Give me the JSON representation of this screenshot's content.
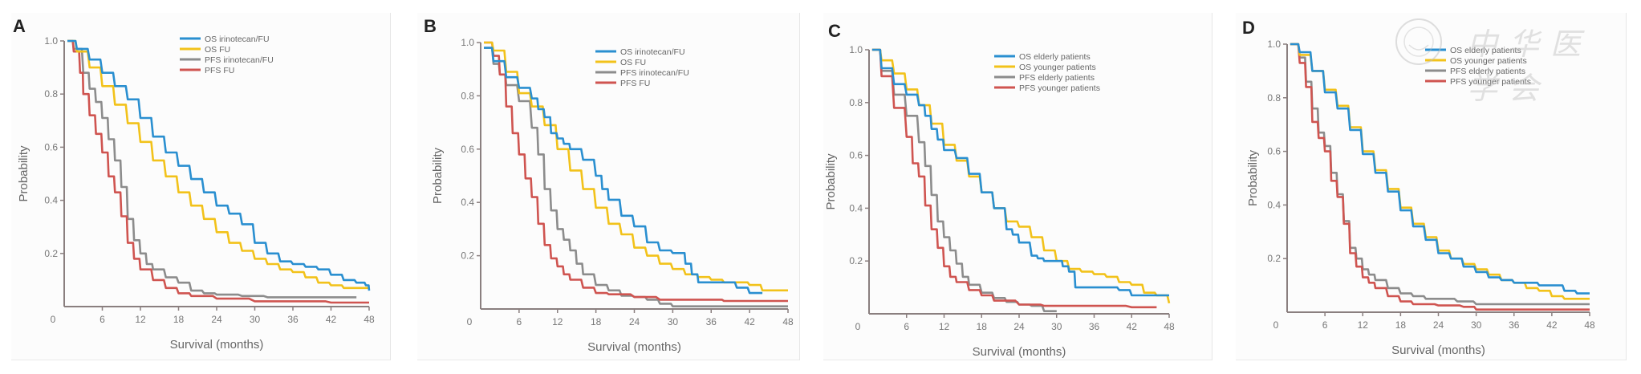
{
  "watermark": {
    "text": "中华医学会"
  },
  "chart_data": [
    {
      "panel": "A",
      "type": "line",
      "title": "",
      "xlabel": "Survival (months)",
      "ylabel": "Probability",
      "xlim": [
        0,
        48
      ],
      "ylim": [
        0,
        1.0
      ],
      "xticks": [
        "0",
        "6",
        "12",
        "18",
        "24",
        "30",
        "36",
        "42",
        "48"
      ],
      "yticks": [
        "0.2",
        "0.4",
        "0.6",
        "0.8",
        "1.0"
      ],
      "grid": false,
      "legend_position": "top-right",
      "series": [
        {
          "name": "OS irinotecan/FU",
          "color": "#2a8fd0",
          "x": [
            0.5,
            2,
            4,
            6,
            8,
            10,
            12,
            14,
            16,
            18,
            20,
            22,
            24,
            26,
            28,
            30,
            32,
            34,
            36,
            38,
            40,
            42,
            44,
            46,
            47.5,
            48
          ],
          "y": [
            1.0,
            0.97,
            0.93,
            0.88,
            0.83,
            0.78,
            0.71,
            0.64,
            0.58,
            0.53,
            0.48,
            0.43,
            0.38,
            0.35,
            0.31,
            0.24,
            0.2,
            0.17,
            0.16,
            0.15,
            0.14,
            0.12,
            0.1,
            0.09,
            0.08,
            0.06
          ]
        },
        {
          "name": "OS FU",
          "color": "#f2c21a",
          "x": [
            0.5,
            2,
            4,
            6,
            8,
            10,
            12,
            14,
            16,
            18,
            20,
            22,
            24,
            26,
            28,
            30,
            32,
            34,
            36,
            38,
            40,
            42,
            44,
            46,
            48
          ],
          "y": [
            1.0,
            0.96,
            0.9,
            0.83,
            0.76,
            0.69,
            0.62,
            0.55,
            0.49,
            0.43,
            0.38,
            0.33,
            0.28,
            0.24,
            0.21,
            0.18,
            0.16,
            0.14,
            0.13,
            0.11,
            0.09,
            0.08,
            0.07,
            0.07,
            0.07
          ]
        },
        {
          "name": "PFS irinotecan/FU",
          "color": "#8c8c8c",
          "x": [
            0.5,
            1.5,
            3,
            4,
            5,
            6,
            7,
            8,
            9,
            10,
            11,
            12,
            13,
            14,
            16,
            18,
            20,
            22,
            24,
            28,
            32,
            36,
            42,
            46
          ],
          "y": [
            1.0,
            0.97,
            0.88,
            0.82,
            0.77,
            0.71,
            0.63,
            0.55,
            0.45,
            0.33,
            0.25,
            0.2,
            0.16,
            0.14,
            0.11,
            0.09,
            0.06,
            0.05,
            0.045,
            0.04,
            0.035,
            0.035,
            0.035,
            0.035
          ]
        },
        {
          "name": "PFS FU",
          "color": "#cf5450",
          "x": [
            0.5,
            1.5,
            2.5,
            3,
            4,
            5,
            6,
            7,
            8,
            9,
            10,
            11,
            12,
            14,
            16,
            18,
            20,
            24,
            30,
            36,
            42,
            48
          ],
          "y": [
            1.0,
            0.96,
            0.88,
            0.8,
            0.72,
            0.65,
            0.58,
            0.49,
            0.43,
            0.34,
            0.24,
            0.18,
            0.14,
            0.1,
            0.07,
            0.05,
            0.04,
            0.03,
            0.02,
            0.02,
            0.015,
            0.015
          ]
        }
      ]
    },
    {
      "panel": "B",
      "type": "line",
      "title": "",
      "xlabel": "Survival (months)",
      "ylabel": "Probability",
      "xlim": [
        0,
        48
      ],
      "ylim": [
        0,
        1.0
      ],
      "xticks": [
        "0",
        "6",
        "12",
        "18",
        "24",
        "30",
        "36",
        "42",
        "48"
      ],
      "yticks": [
        "0.2",
        "0.4",
        "0.6",
        "0.8",
        "1.0"
      ],
      "grid": false,
      "legend_position": "top-right",
      "series": [
        {
          "name": "OS irinotecan/FU",
          "color": "#2a8fd0",
          "x": [
            0.5,
            2,
            4,
            6,
            8,
            9,
            10,
            11,
            12,
            13,
            14,
            16,
            18,
            19,
            20,
            22,
            24,
            26,
            28,
            30,
            31,
            32,
            33,
            34,
            36,
            38,
            40,
            42,
            44
          ],
          "y": [
            0.98,
            0.93,
            0.87,
            0.83,
            0.79,
            0.75,
            0.72,
            0.66,
            0.64,
            0.62,
            0.6,
            0.56,
            0.5,
            0.45,
            0.41,
            0.35,
            0.31,
            0.25,
            0.22,
            0.21,
            0.21,
            0.17,
            0.13,
            0.1,
            0.1,
            0.1,
            0.08,
            0.06,
            0.06
          ]
        },
        {
          "name": "OS FU",
          "color": "#f2c21a",
          "x": [
            0.5,
            2,
            4,
            6,
            8,
            10,
            12,
            14,
            16,
            18,
            20,
            22,
            24,
            26,
            28,
            30,
            32,
            34,
            36,
            38,
            40,
            42,
            44,
            46,
            48
          ],
          "y": [
            1.0,
            0.97,
            0.89,
            0.81,
            0.76,
            0.69,
            0.6,
            0.52,
            0.45,
            0.38,
            0.32,
            0.28,
            0.23,
            0.2,
            0.17,
            0.15,
            0.13,
            0.12,
            0.11,
            0.1,
            0.1,
            0.09,
            0.07,
            0.07,
            0.07
          ]
        },
        {
          "name": "PFS irinotecan/FU",
          "color": "#8c8c8c",
          "x": [
            0.5,
            2,
            3,
            4,
            6,
            8,
            9,
            10,
            11,
            12,
            13,
            14,
            15,
            16,
            18,
            20,
            22,
            24,
            26,
            28,
            30,
            36,
            42,
            48
          ],
          "y": [
            0.98,
            0.92,
            0.88,
            0.84,
            0.78,
            0.68,
            0.58,
            0.45,
            0.37,
            0.3,
            0.26,
            0.22,
            0.17,
            0.13,
            0.09,
            0.07,
            0.05,
            0.045,
            0.035,
            0.02,
            0.01,
            0.01,
            0.01,
            0.01
          ]
        },
        {
          "name": "PFS FU",
          "color": "#cf5450",
          "x": [
            0.5,
            2,
            3,
            4,
            5,
            6,
            7,
            8,
            9,
            10,
            11,
            12,
            13,
            14,
            16,
            18,
            20,
            24,
            28,
            32,
            36,
            38,
            42,
            48
          ],
          "y": [
            1.0,
            0.95,
            0.88,
            0.76,
            0.66,
            0.58,
            0.49,
            0.42,
            0.32,
            0.24,
            0.19,
            0.16,
            0.13,
            0.11,
            0.08,
            0.06,
            0.055,
            0.045,
            0.035,
            0.035,
            0.035,
            0.03,
            0.03,
            0.03
          ]
        }
      ]
    },
    {
      "panel": "C",
      "type": "line",
      "title": "",
      "xlabel": "Survival (months)",
      "ylabel": "Probability",
      "xlim": [
        0,
        48
      ],
      "ylim": [
        0,
        1.0
      ],
      "xticks": [
        "0",
        "6",
        "12",
        "18",
        "24",
        "30",
        "36",
        "42",
        "48"
      ],
      "yticks": [
        "0.2",
        "0.4",
        "0.6",
        "0.8",
        "1.0"
      ],
      "grid": false,
      "legend_position": "top-right",
      "series": [
        {
          "name": "OS elderly patients",
          "color": "#2a8fd0",
          "x": [
            0.5,
            2,
            4,
            6,
            8,
            9,
            10,
            11,
            12,
            14,
            16,
            18,
            20,
            22,
            23,
            24,
            26,
            27,
            28,
            30,
            31,
            32,
            33,
            34,
            36,
            38,
            40,
            42,
            44,
            46,
            48
          ],
          "y": [
            1.0,
            0.93,
            0.87,
            0.83,
            0.79,
            0.75,
            0.7,
            0.66,
            0.62,
            0.59,
            0.53,
            0.46,
            0.4,
            0.32,
            0.3,
            0.27,
            0.22,
            0.21,
            0.2,
            0.2,
            0.18,
            0.16,
            0.1,
            0.1,
            0.1,
            0.1,
            0.09,
            0.07,
            0.07,
            0.07,
            0.07
          ]
        },
        {
          "name": "OS younger patients",
          "color": "#f2c21a",
          "x": [
            0.5,
            2,
            4,
            6,
            8,
            10,
            12,
            14,
            16,
            18,
            20,
            22,
            24,
            26,
            28,
            30,
            32,
            34,
            36,
            38,
            40,
            42,
            44,
            46,
            48
          ],
          "y": [
            1.0,
            0.96,
            0.91,
            0.85,
            0.79,
            0.72,
            0.64,
            0.58,
            0.52,
            0.46,
            0.4,
            0.35,
            0.33,
            0.29,
            0.24,
            0.2,
            0.17,
            0.16,
            0.15,
            0.14,
            0.12,
            0.11,
            0.08,
            0.07,
            0.04
          ]
        },
        {
          "name": "PFS elderly patients",
          "color": "#8c8c8c",
          "x": [
            0.5,
            2,
            4,
            6,
            8,
            9,
            10,
            11,
            12,
            13,
            14,
            15,
            16,
            18,
            20,
            22,
            24,
            26,
            28,
            30
          ],
          "y": [
            1.0,
            0.92,
            0.83,
            0.75,
            0.65,
            0.56,
            0.45,
            0.35,
            0.29,
            0.24,
            0.19,
            0.14,
            0.11,
            0.08,
            0.06,
            0.045,
            0.035,
            0.03,
            0.01,
            0.01
          ]
        },
        {
          "name": "PFS younger patients",
          "color": "#cf5450",
          "x": [
            0.5,
            2,
            4,
            6,
            7,
            8,
            9,
            10,
            11,
            12,
            13,
            14,
            16,
            18,
            20,
            24,
            28,
            30,
            36,
            42,
            46
          ],
          "y": [
            1.0,
            0.9,
            0.78,
            0.67,
            0.57,
            0.52,
            0.41,
            0.32,
            0.25,
            0.18,
            0.14,
            0.12,
            0.09,
            0.07,
            0.05,
            0.035,
            0.03,
            0.03,
            0.03,
            0.025,
            0.025
          ]
        }
      ]
    },
    {
      "panel": "D",
      "type": "line",
      "title": "",
      "xlabel": "Survival (months)",
      "ylabel": "Probability",
      "xlim": [
        0,
        48
      ],
      "ylim": [
        0,
        1.0
      ],
      "xticks": [
        "0",
        "6",
        "12",
        "18",
        "24",
        "30",
        "36",
        "42",
        "48"
      ],
      "yticks": [
        "0.2",
        "0.4",
        "0.6",
        "0.8",
        "1.0"
      ],
      "grid": false,
      "legend_position": "top-right",
      "series": [
        {
          "name": "OS elderly patients",
          "color": "#2a8fd0",
          "x": [
            0.5,
            2,
            4,
            6,
            8,
            10,
            12,
            14,
            16,
            18,
            20,
            22,
            24,
            26,
            28,
            30,
            32,
            34,
            36,
            38,
            40,
            42,
            44,
            46,
            48
          ],
          "y": [
            1.0,
            0.97,
            0.9,
            0.82,
            0.76,
            0.68,
            0.59,
            0.52,
            0.45,
            0.38,
            0.32,
            0.27,
            0.22,
            0.2,
            0.17,
            0.15,
            0.13,
            0.12,
            0.11,
            0.11,
            0.1,
            0.1,
            0.08,
            0.07,
            0.07
          ]
        },
        {
          "name": "OS younger patients",
          "color": "#f2c21a",
          "x": [
            0.5,
            2,
            4,
            6,
            8,
            10,
            12,
            14,
            16,
            18,
            20,
            22,
            24,
            26,
            28,
            30,
            32,
            34,
            36,
            38,
            40,
            42,
            44,
            46,
            48
          ],
          "y": [
            1.0,
            0.96,
            0.9,
            0.83,
            0.77,
            0.69,
            0.6,
            0.53,
            0.46,
            0.39,
            0.33,
            0.28,
            0.23,
            0.2,
            0.18,
            0.16,
            0.14,
            0.12,
            0.11,
            0.09,
            0.08,
            0.06,
            0.05,
            0.05,
            0.05
          ]
        },
        {
          "name": "PFS elderly patients",
          "color": "#8c8c8c",
          "x": [
            0.5,
            2,
            3,
            4,
            5,
            6,
            7,
            8,
            9,
            10,
            11,
            12,
            13,
            14,
            16,
            18,
            20,
            22,
            24,
            27,
            30,
            36,
            42,
            48
          ],
          "y": [
            1.0,
            0.95,
            0.86,
            0.76,
            0.67,
            0.62,
            0.52,
            0.44,
            0.34,
            0.24,
            0.2,
            0.16,
            0.14,
            0.12,
            0.09,
            0.07,
            0.06,
            0.05,
            0.05,
            0.04,
            0.03,
            0.03,
            0.03,
            0.03
          ]
        },
        {
          "name": "PFS younger patients",
          "color": "#cf5450",
          "x": [
            0.5,
            2,
            3,
            4,
            5,
            6,
            7,
            8,
            9,
            10,
            11,
            12,
            13,
            14,
            16,
            18,
            20,
            24,
            28,
            30,
            36,
            42,
            48
          ],
          "y": [
            1.0,
            0.93,
            0.84,
            0.71,
            0.65,
            0.6,
            0.49,
            0.43,
            0.33,
            0.22,
            0.17,
            0.13,
            0.11,
            0.09,
            0.06,
            0.04,
            0.03,
            0.025,
            0.02,
            0.01,
            0.01,
            0.01,
            0.01
          ]
        }
      ]
    }
  ]
}
